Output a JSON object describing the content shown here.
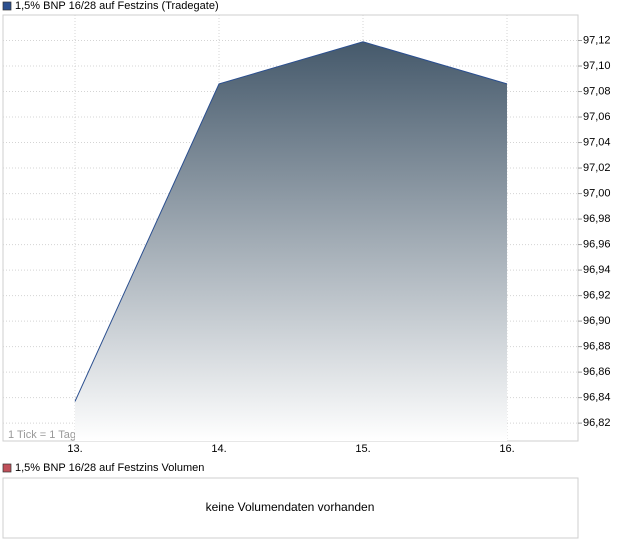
{
  "chart_data": {
    "type": "area",
    "annotation": "1 Tick = 1 Tag",
    "categories": [
      "13.",
      "14.",
      "15.",
      "16."
    ],
    "series": [
      {
        "name": "1,5% BNP 16/28 auf Festzins (Tradegate)",
        "color": "#2b4f8f",
        "values": [
          96.837,
          97.086,
          97.119,
          97.086
        ]
      }
    ],
    "ylim": [
      96.806,
      97.14
    ],
    "yticks": [
      {
        "value": 96.82,
        "label": "96,82"
      },
      {
        "value": 96.84,
        "label": "96,84"
      },
      {
        "value": 96.86,
        "label": "96,86"
      },
      {
        "value": 96.88,
        "label": "96,88"
      },
      {
        "value": 96.9,
        "label": "96,90"
      },
      {
        "value": 96.92,
        "label": "96,92"
      },
      {
        "value": 96.94,
        "label": "96,94"
      },
      {
        "value": 96.96,
        "label": "96,96"
      },
      {
        "value": 96.98,
        "label": "96,98"
      },
      {
        "value": 97.0,
        "label": "97,00"
      },
      {
        "value": 97.02,
        "label": "97,02"
      },
      {
        "value": 97.04,
        "label": "97,04"
      },
      {
        "value": 97.06,
        "label": "97,06"
      },
      {
        "value": 97.08,
        "label": "97,08"
      },
      {
        "value": 97.1,
        "label": "97,10"
      },
      {
        "value": 97.12,
        "label": "97,12"
      }
    ],
    "grid": true
  },
  "volume": {
    "name": "1,5% BNP 16/28 auf Festzins Volumen",
    "color": "#c0505a",
    "message": "keine Volumendaten vorhanden"
  }
}
